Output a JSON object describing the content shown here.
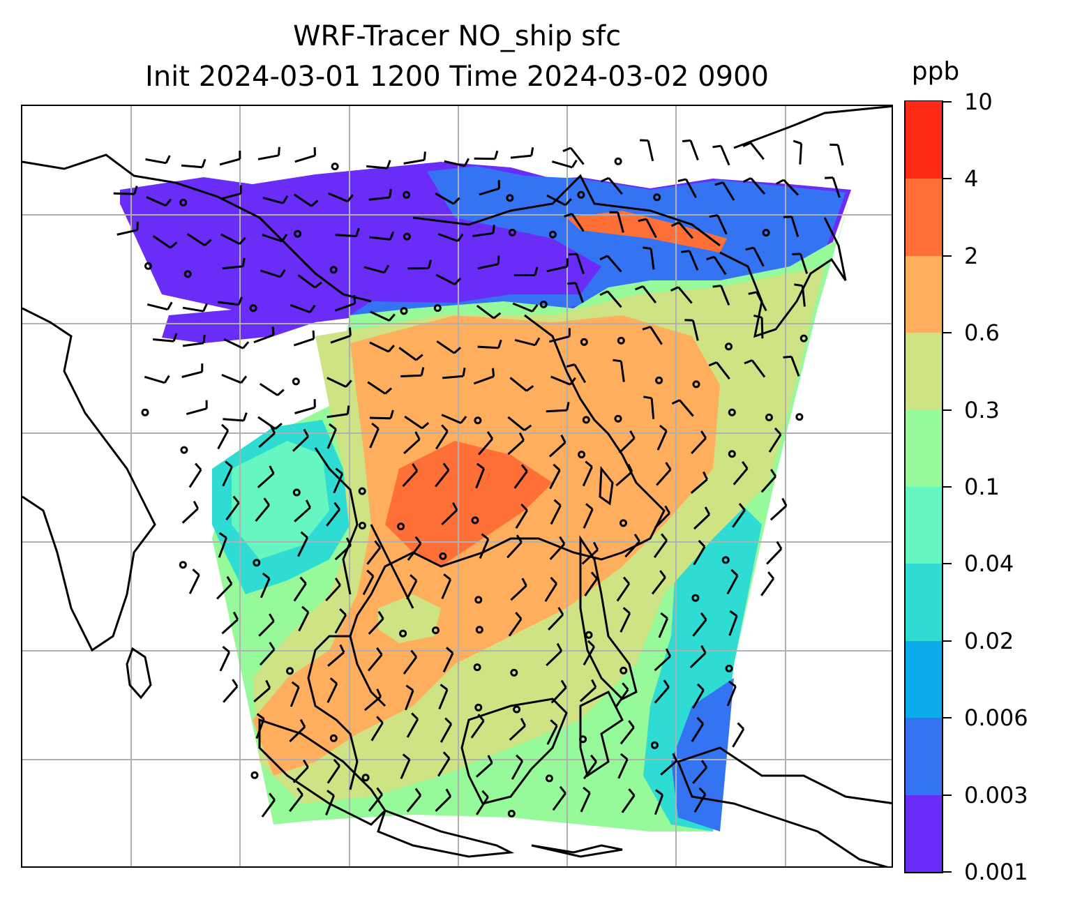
{
  "title": {
    "line1": "WRF-Tracer NO_ship sfc",
    "line2": "Init 2024-03-01 1200 Time 2024-03-02 0900"
  },
  "colorbar": {
    "unit": "ppb",
    "levels": [
      "0.001",
      "0.003",
      "0.006",
      "0.02",
      "0.04",
      "0.1",
      "0.3",
      "0.6",
      "2",
      "4",
      "10"
    ],
    "colors": [
      "#6a2cf7",
      "#3474f2",
      "#0aacea",
      "#2edcd4",
      "#66f6c2",
      "#96f99a",
      "#cde384",
      "#ffae5e",
      "#ff7038",
      "#ff2a14"
    ]
  },
  "map": {
    "region": "South and East Asia / Maritime Continent",
    "features": [
      "coastlines",
      "country-borders",
      "lat-lon-gridlines",
      "wind-barbs",
      "calm-circles",
      "tracer-shading"
    ],
    "gridlines": true
  }
}
